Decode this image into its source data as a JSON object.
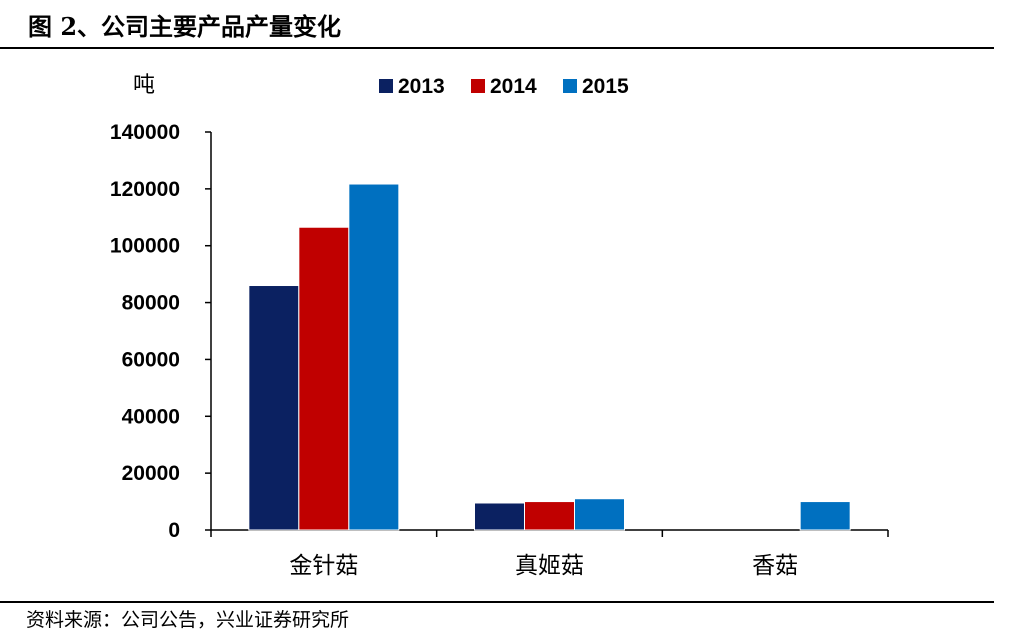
{
  "figure": {
    "title": "图 2、公司主要产品产量变化",
    "source": "资料来源：公司公告，兴业证券研究所"
  },
  "chart_data": {
    "type": "bar",
    "title": "图 2、公司主要产品产量变化",
    "ylabel": "吨",
    "xlabel": "",
    "categories": [
      "金针菇",
      "真姬菇",
      "香菇"
    ],
    "series": [
      {
        "name": "2013",
        "color": "#0B2161",
        "values": [
          86000,
          9500,
          0
        ]
      },
      {
        "name": "2014",
        "color": "#C00000",
        "values": [
          106500,
          10000,
          0
        ]
      },
      {
        "name": "2015",
        "color": "#0070C0",
        "values": [
          121700,
          11000,
          10000
        ]
      }
    ],
    "ylim": [
      0,
      140000
    ],
    "yticks": [
      "0",
      "20000",
      "40000",
      "60000",
      "80000",
      "100000",
      "120000",
      "140000"
    ],
    "grid": false,
    "legend": "top-center"
  }
}
